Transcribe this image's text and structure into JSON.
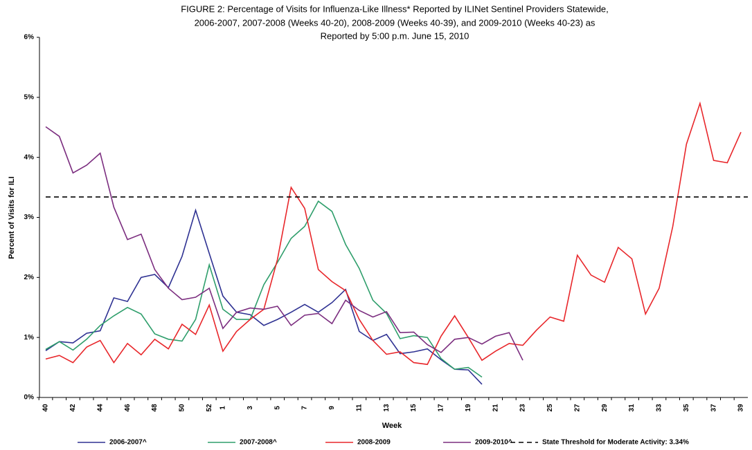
{
  "chart_data": {
    "type": "line",
    "title": [
      "FIGURE 2: Percentage of Visits for Influenza-Like Illness* Reported by ILINet Sentinel Providers Statewide,",
      "2006-2007, 2007-2008 (Weeks 40-20), 2008-2009 (Weeks 40-39), and 2009-2010 (Weeks 40-23) as",
      "Reported by 5:00 p.m. June 15, 2010"
    ],
    "xlabel": "Week",
    "ylabel": "Percent of Visits for ILI",
    "categories": [
      "40",
      null,
      "42",
      null,
      "44",
      null,
      "46",
      null,
      "48",
      null,
      "50",
      null,
      "52",
      "1",
      null,
      "3",
      null,
      "5",
      null,
      "7",
      null,
      "9",
      null,
      "11",
      null,
      "13",
      null,
      "15",
      null,
      "17",
      null,
      "19",
      null,
      "21",
      null,
      "23",
      null,
      "25",
      null,
      "27",
      null,
      "29",
      null,
      "31",
      null,
      "33",
      null,
      "35",
      null,
      "37",
      null,
      "39"
    ],
    "ylim": [
      0,
      6
    ],
    "yticks": [
      {
        "value": 0,
        "label": "0%"
      },
      {
        "value": 1,
        "label": "1%"
      },
      {
        "value": 2,
        "label": "2%"
      },
      {
        "value": 3,
        "label": "3%"
      },
      {
        "value": 4,
        "label": "4%"
      },
      {
        "value": 5,
        "label": "5%"
      },
      {
        "value": 6,
        "label": "6%"
      }
    ],
    "grid": false,
    "series": [
      {
        "name": "2006-2007^",
        "color": "#2e3192",
        "values": [
          0.78,
          0.93,
          0.91,
          1.07,
          1.11,
          1.66,
          1.6,
          2.0,
          2.05,
          1.83,
          2.35,
          3.12,
          2.4,
          1.69,
          1.42,
          1.38,
          1.2,
          1.3,
          1.42,
          1.55,
          1.42,
          1.58,
          1.8,
          1.1,
          0.95,
          1.05,
          0.73,
          0.76,
          0.81,
          0.63,
          0.47,
          0.46,
          0.22,
          null,
          null,
          null,
          null,
          null,
          null,
          null,
          null,
          null,
          null,
          null,
          null,
          null,
          null,
          null,
          null,
          null,
          null,
          null
        ]
      },
      {
        "name": "2007-2008^",
        "color": "#2e9e6b",
        "values": [
          0.8,
          0.93,
          0.79,
          0.97,
          1.2,
          1.36,
          1.5,
          1.39,
          1.06,
          0.97,
          0.94,
          1.3,
          2.21,
          1.47,
          1.3,
          1.3,
          1.88,
          2.25,
          2.65,
          2.85,
          3.27,
          3.1,
          2.55,
          2.15,
          1.62,
          1.4,
          0.98,
          1.03,
          1.0,
          0.65,
          0.47,
          0.5,
          0.34,
          null,
          null,
          null,
          null,
          null,
          null,
          null,
          null,
          null,
          null,
          null,
          null,
          null,
          null,
          null,
          null,
          null,
          null,
          null
        ]
      },
      {
        "name": "2008-2009",
        "color": "#e8262a",
        "values": [
          0.64,
          0.7,
          0.58,
          0.84,
          0.95,
          0.58,
          0.9,
          0.71,
          0.97,
          0.81,
          1.22,
          1.05,
          1.54,
          0.77,
          1.1,
          1.3,
          1.47,
          2.3,
          3.5,
          3.15,
          2.13,
          1.93,
          1.78,
          1.3,
          0.95,
          0.72,
          0.76,
          0.58,
          0.55,
          1.02,
          1.36,
          1.0,
          0.62,
          0.77,
          0.9,
          0.87,
          1.12,
          1.34,
          1.27,
          2.37,
          2.04,
          1.92,
          2.5,
          2.31,
          1.39,
          1.82,
          2.85,
          4.22,
          4.9,
          3.95,
          3.91,
          4.42
        ]
      },
      {
        "name": "2009-2010^",
        "color": "#7b2d7f",
        "values": [
          4.51,
          4.35,
          3.74,
          3.87,
          4.07,
          3.17,
          2.63,
          2.72,
          2.13,
          1.82,
          1.63,
          1.67,
          1.82,
          1.15,
          1.42,
          1.49,
          1.47,
          1.52,
          1.2,
          1.37,
          1.4,
          1.23,
          1.62,
          1.45,
          1.34,
          1.43,
          1.08,
          1.09,
          0.88,
          0.75,
          0.97,
          1.0,
          0.89,
          1.02,
          1.08,
          0.62,
          null,
          null,
          null,
          null,
          null,
          null,
          null,
          null,
          null,
          null,
          null,
          null,
          null,
          null,
          null,
          null
        ]
      }
    ],
    "threshold": {
      "name": "State Threshold for Moderate Activity: 3.34%",
      "value": 3.34,
      "color": "#000000"
    }
  }
}
